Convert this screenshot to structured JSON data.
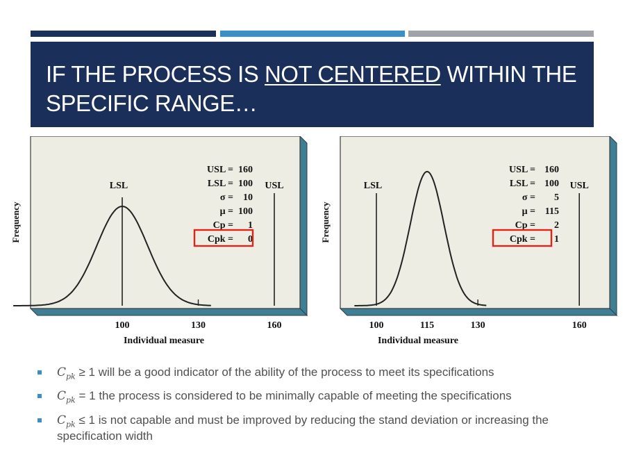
{
  "header": {
    "title_part1": "IF THE PROCESS IS",
    "title_underlined": "NOT  CENTERED",
    "title_part2": "WITHIN THE SPECIFIC RANGE…",
    "accent_colors": [
      "#1b2f5b",
      "#3a8fc7",
      "#a0a3a8"
    ]
  },
  "chart_data": [
    {
      "type": "line",
      "ylabel": "Frequency",
      "xlabel": "Individual measure",
      "lsl_label": "LSL",
      "usl_label": "USL",
      "x_ticks": [
        "100",
        "130",
        "160"
      ],
      "mean": 100,
      "sigma": 10,
      "lsl": 100,
      "usl": 160,
      "stats": [
        {
          "label": "USL =",
          "value": "160"
        },
        {
          "label": "LSL =",
          "value": "100"
        },
        {
          "label": "σ =",
          "value": "10"
        },
        {
          "label": "μ =",
          "value": "100"
        },
        {
          "label": "Cp =",
          "value": "1"
        },
        {
          "label": "Cpk =",
          "value": "0"
        }
      ],
      "highlighted_stat": "Cpk"
    },
    {
      "type": "line",
      "ylabel": "Frequency",
      "xlabel": "Individual measure",
      "lsl_label": "LSL",
      "usl_label": "USL",
      "x_ticks": [
        "100",
        "115",
        "130",
        "160"
      ],
      "mean": 115,
      "sigma": 5,
      "lsl": 100,
      "usl": 160,
      "stats": [
        {
          "label": "USL =",
          "value": "160"
        },
        {
          "label": "LSL =",
          "value": "100"
        },
        {
          "label": "σ =",
          "value": "5"
        },
        {
          "label": "μ =",
          "value": "115"
        },
        {
          "label": "Cp =",
          "value": "2"
        },
        {
          "label": "Cpk =",
          "value": "1"
        }
      ],
      "highlighted_stat": "Cpk"
    }
  ],
  "bullets": [
    {
      "symbol": "C",
      "subscript": "pk",
      "relation": "≥ 1",
      "text": "will be a good indicator of the ability of the process to meet its specifications"
    },
    {
      "symbol": "C",
      "subscript": "pk",
      "relation": "= 1",
      "text": "the process is considered to be minimally capable of meeting the specifications"
    },
    {
      "symbol": "C",
      "subscript": "pk",
      "relation": "≤ 1",
      "text": "is not capable and must be improved by reducing the stand deviation or increasing the specification width"
    }
  ]
}
